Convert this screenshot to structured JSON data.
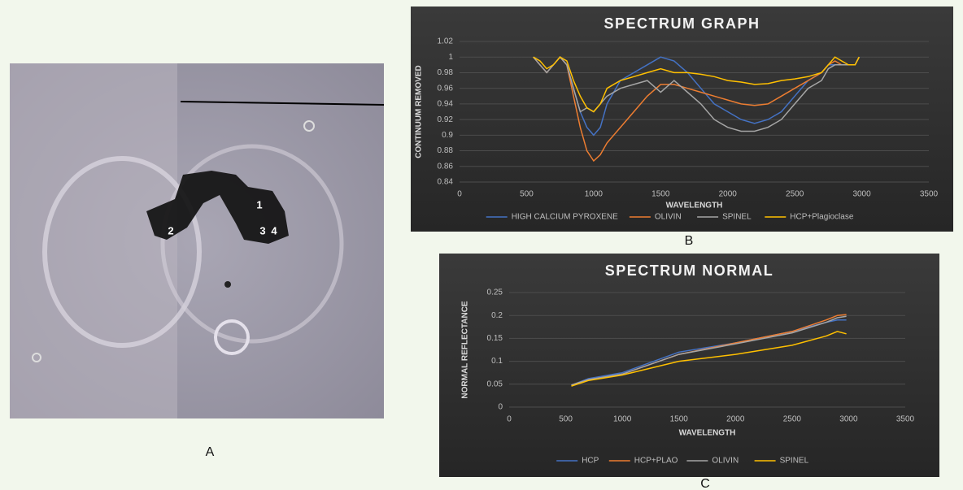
{
  "panels": {
    "panel_labels": [
      "A",
      "B",
      "C"
    ],
    "image_labels": [
      "1",
      "2",
      "3",
      "4"
    ]
  },
  "chart_data": [
    {
      "type": "line",
      "title": "SPECTRUM GRAPH",
      "x_label": "WAVELENGTH",
      "y_label": "CONTINUUM REMOVED",
      "x": [
        550,
        600,
        650,
        700,
        750,
        800,
        850,
        900,
        950,
        1000,
        1050,
        1100,
        1200,
        1300,
        1400,
        1500,
        1600,
        1700,
        1800,
        1900,
        2000,
        2100,
        2200,
        2300,
        2400,
        2500,
        2600,
        2700,
        2750,
        2800,
        2850,
        2900,
        2950,
        2980
      ],
      "series": [
        {
          "name": "HIGH CALCIUM PYROXENE",
          "color": "#4472c4",
          "values": [
            1,
            0.99,
            0.98,
            0.99,
            1,
            0.99,
            0.96,
            0.93,
            0.91,
            0.9,
            0.91,
            0.94,
            0.97,
            0.98,
            0.99,
            1,
            0.995,
            0.98,
            0.96,
            0.94,
            0.93,
            0.92,
            0.915,
            0.92,
            0.93,
            0.95,
            0.97,
            0.98,
            0.99,
            0.99,
            0.99,
            0.99,
            0.99,
            1
          ]
        },
        {
          "name": "OLIVIN",
          "color": "#ed7d31",
          "values": [
            1,
            0.99,
            0.98,
            0.99,
            1,
            0.99,
            0.95,
            0.91,
            0.88,
            0.867,
            0.875,
            0.89,
            0.91,
            0.93,
            0.95,
            0.965,
            0.965,
            0.96,
            0.955,
            0.95,
            0.945,
            0.94,
            0.938,
            0.94,
            0.95,
            0.96,
            0.97,
            0.98,
            0.99,
            0.995,
            0.99,
            0.99,
            0.99,
            1
          ]
        },
        {
          "name": "SPINEL",
          "color": "#a5a5a5",
          "values": [
            1,
            0.99,
            0.98,
            0.99,
            1,
            0.99,
            0.96,
            0.93,
            0.935,
            0.93,
            0.94,
            0.95,
            0.96,
            0.965,
            0.97,
            0.955,
            0.97,
            0.955,
            0.94,
            0.92,
            0.91,
            0.905,
            0.905,
            0.91,
            0.92,
            0.94,
            0.96,
            0.97,
            0.985,
            0.99,
            0.99,
            0.99,
            0.99,
            1
          ]
        },
        {
          "name": "HCP+Plagioclase",
          "color": "#ffc000",
          "values": [
            1,
            0.995,
            0.985,
            0.99,
            1,
            0.995,
            0.97,
            0.95,
            0.935,
            0.93,
            0.94,
            0.96,
            0.97,
            0.975,
            0.98,
            0.985,
            0.98,
            0.98,
            0.978,
            0.975,
            0.97,
            0.968,
            0.965,
            0.966,
            0.97,
            0.972,
            0.975,
            0.98,
            0.99,
            1,
            0.995,
            0.99,
            0.99,
            1
          ]
        }
      ],
      "xlim": [
        0,
        3500
      ],
      "xticks": [
        0,
        500,
        1000,
        1500,
        2000,
        2500,
        3000,
        3500
      ],
      "ylim": [
        0.84,
        1.02
      ],
      "yticks": [
        0.84,
        0.86,
        0.88,
        0.9,
        0.92,
        0.94,
        0.96,
        0.98,
        1,
        1.02
      ],
      "grid": true,
      "legend": "bottom"
    },
    {
      "type": "line",
      "title": "SPECTRUM NORMAL",
      "x_label": "WAVELENGTH",
      "y_label": "NORMAL REFLECTANCE",
      "x": [
        550,
        700,
        1000,
        1500,
        2000,
        2500,
        2800,
        2900,
        2980
      ],
      "series": [
        {
          "name": "HCP",
          "color": "#4472c4",
          "values": [
            0.048,
            0.062,
            0.075,
            0.12,
            0.14,
            0.165,
            0.185,
            0.19,
            0.19
          ]
        },
        {
          "name": "HCP+PLAO",
          "color": "#ed7d31",
          "values": [
            0.048,
            0.06,
            0.072,
            0.115,
            0.14,
            0.165,
            0.19,
            0.2,
            0.202
          ]
        },
        {
          "name": "OLIVIN",
          "color": "#a5a5a5",
          "values": [
            0.048,
            0.06,
            0.072,
            0.115,
            0.138,
            0.162,
            0.185,
            0.195,
            0.198
          ]
        },
        {
          "name": "SPINEL",
          "color": "#ffc000",
          "values": [
            0.046,
            0.058,
            0.07,
            0.1,
            0.115,
            0.135,
            0.155,
            0.165,
            0.16
          ]
        }
      ],
      "xlim": [
        0,
        3500
      ],
      "xticks": [
        0,
        500,
        1000,
        1500,
        2000,
        2500,
        3000,
        3500
      ],
      "ylim": [
        0,
        0.25
      ],
      "yticks": [
        0,
        0.05,
        0.1,
        0.15,
        0.2,
        0.25
      ],
      "grid": true,
      "legend": "bottom"
    }
  ]
}
